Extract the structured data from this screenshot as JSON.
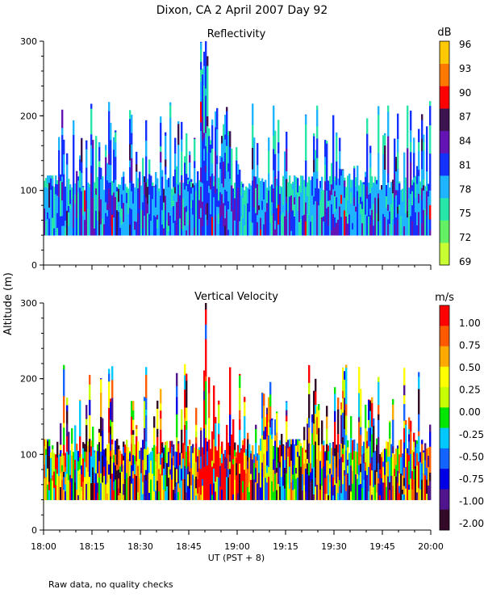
{
  "title": "Dixon, CA   2 April 2007   Day  92",
  "footnote": "Raw data, no quality checks",
  "y_axis_label": "Altitude (m)",
  "x_axis_label": "UT   (PST + 8)",
  "x_ticks": [
    "18:00",
    "18:15",
    "18:30",
    "18:45",
    "19:00",
    "19:15",
    "19:30",
    "19:45",
    "20:00"
  ],
  "chart_data": [
    {
      "type": "heatmap",
      "title": "Reflectivity",
      "xlabel": "UT   (PST + 8)",
      "ylabel": "Altitude (m)",
      "xlim_minutes_after_18UT": [
        0,
        120
      ],
      "ylim": [
        0,
        300
      ],
      "y_ticks": [
        "0",
        "100",
        "200",
        "300"
      ],
      "colorbar": {
        "unit": "dB",
        "labels": [
          "69",
          "72",
          "75",
          "78",
          "81",
          "84",
          "87",
          "90",
          "93",
          "96"
        ],
        "colors": [
          "#c8ff32",
          "#64f064",
          "#28e6aa",
          "#1eb4ff",
          "#1432ff",
          "#6414b4",
          "#3c1450",
          "#ff0000",
          "#ff7800",
          "#ffc800"
        ]
      },
      "observed_altitude_range_m": [
        40,
        300
      ]
    },
    {
      "type": "heatmap",
      "title": "Vertical Velocity",
      "xlabel": "UT   (PST + 8)",
      "ylabel": "Altitude (m)",
      "xlim_minutes_after_18UT": [
        0,
        120
      ],
      "ylim": [
        0,
        300
      ],
      "y_ticks": [
        "0",
        "100",
        "200",
        "300"
      ],
      "colorbar": {
        "unit": "m/s",
        "labels": [
          "1.00",
          "0.75",
          "0.50",
          "0.25",
          "0.00",
          "-0.25",
          "-0.50",
          "-0.75",
          "-1.00",
          "-2.00"
        ],
        "colors": [
          "#ff0000",
          "#ff5a00",
          "#ffaa00",
          "#ffff00",
          "#c8ff00",
          "#00e600",
          "#00c8ff",
          "#1464ff",
          "#0000e6",
          "#50148c",
          "#320a28"
        ]
      },
      "observed_altitude_range_m": [
        40,
        300
      ]
    }
  ]
}
